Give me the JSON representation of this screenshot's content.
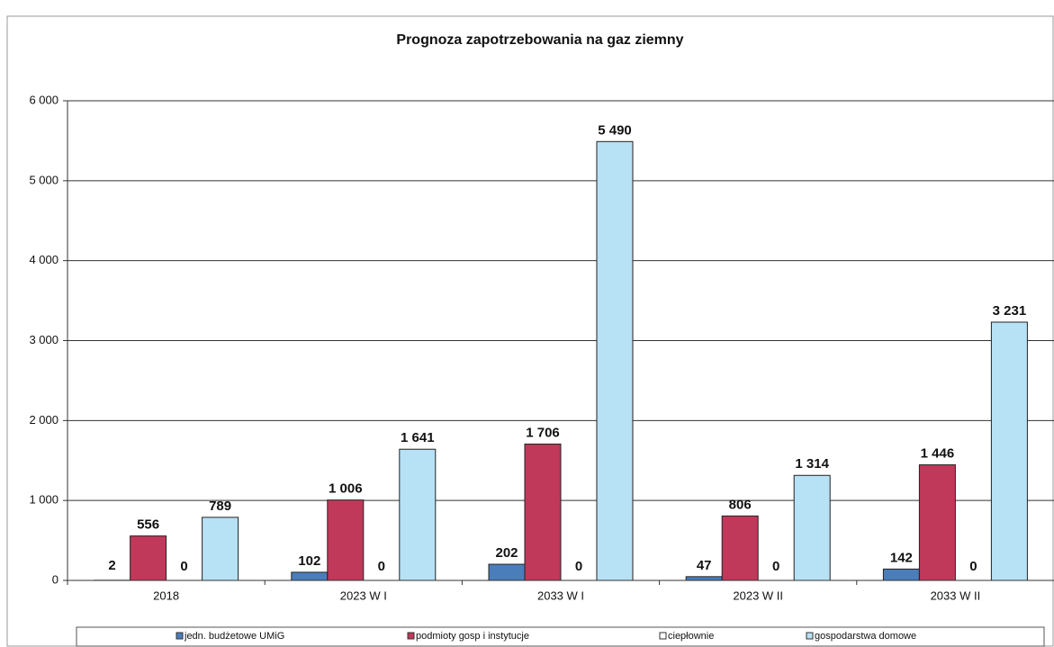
{
  "chart_data": {
    "type": "bar",
    "title": "Prognoza zapotrzebowania na gaz ziemny",
    "categories": [
      "2018",
      "2023 W I",
      "2033 W I",
      "2023 W II",
      "2033 W II"
    ],
    "series": [
      {
        "name": "jedn. budżetowe UMiG",
        "color": "#4a7ebb",
        "values": [
          2,
          102,
          202,
          47,
          142
        ]
      },
      {
        "name": "podmioty gosp i instytucje",
        "color": "#c0395a",
        "values": [
          556,
          1006,
          1706,
          806,
          1446
        ],
        "value_labels": [
          "556",
          "1 006",
          "1 706",
          "806",
          "1 446"
        ]
      },
      {
        "name": "ciepłownie",
        "color": "#ffffff",
        "values": [
          0,
          0,
          0,
          0,
          0
        ]
      },
      {
        "name": "gospodarstwa domowe",
        "color": "#b7e1f5",
        "values": [
          789,
          1641,
          5490,
          1314,
          3231
        ],
        "value_labels": [
          "789",
          "1 641",
          "5 490",
          "1 314",
          "3 231"
        ]
      }
    ],
    "ylim": [
      0,
      6000
    ],
    "yticks": [
      0,
      {
        "value": 1000,
        "label": "1 000"
      },
      {
        "value": 2000,
        "label": "2 000"
      },
      {
        "value": 3000,
        "label": "3 000"
      },
      {
        "value": 4000,
        "label": "4 000"
      },
      {
        "value": 5000,
        "label": "5 000"
      },
      {
        "value": 6000,
        "label": "6 000"
      }
    ],
    "grid": true,
    "legend": "bottom"
  }
}
